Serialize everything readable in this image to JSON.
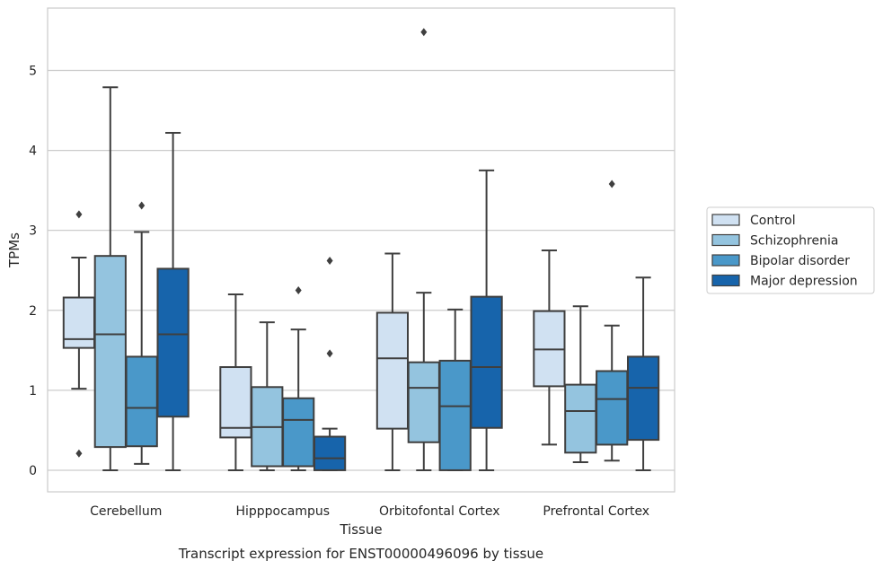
{
  "chart_data": {
    "type": "box",
    "xlabel": "Tissue",
    "ylabel": "TPMs",
    "caption": "Transcript expression for ENST00000496096 by tissue",
    "ylim": [
      -0.27,
      5.78
    ],
    "yticks": [
      0,
      1,
      2,
      3,
      4,
      5
    ],
    "grid": "horizontal",
    "legend_position": "right",
    "categories": [
      "Cerebellum",
      "Hipppocampus",
      "Orbitofontal Cortex",
      "Prefrontal Cortex"
    ],
    "series": [
      {
        "name": "Control",
        "color": "#d0e1f2",
        "boxes": [
          {
            "whisker_low": 1.02,
            "q1": 1.53,
            "median": 1.64,
            "q3": 2.16,
            "whisker_high": 2.66,
            "outliers": [
              3.2,
              0.21
            ]
          },
          {
            "whisker_low": 0.0,
            "q1": 0.41,
            "median": 0.53,
            "q3": 1.29,
            "whisker_high": 2.2,
            "outliers": []
          },
          {
            "whisker_low": 0.0,
            "q1": 0.52,
            "median": 1.4,
            "q3": 1.97,
            "whisker_high": 2.71,
            "outliers": []
          },
          {
            "whisker_low": 0.32,
            "q1": 1.05,
            "median": 1.51,
            "q3": 1.99,
            "whisker_high": 2.75,
            "outliers": []
          }
        ]
      },
      {
        "name": "Schizophrenia",
        "color": "#94c4df",
        "boxes": [
          {
            "whisker_low": 0.0,
            "q1": 0.29,
            "median": 1.7,
            "q3": 2.68,
            "whisker_high": 4.79,
            "outliers": []
          },
          {
            "whisker_low": 0.0,
            "q1": 0.05,
            "median": 0.54,
            "q3": 1.04,
            "whisker_high": 1.85,
            "outliers": []
          },
          {
            "whisker_low": 0.0,
            "q1": 0.35,
            "median": 1.03,
            "q3": 1.35,
            "whisker_high": 2.22,
            "outliers": [
              5.48
            ]
          },
          {
            "whisker_low": 0.1,
            "q1": 0.22,
            "median": 0.74,
            "q3": 1.07,
            "whisker_high": 2.05,
            "outliers": []
          }
        ]
      },
      {
        "name": "Bipolar disorder",
        "color": "#4a98c9",
        "boxes": [
          {
            "whisker_low": 0.08,
            "q1": 0.3,
            "median": 0.78,
            "q3": 1.42,
            "whisker_high": 2.98,
            "outliers": [
              3.31
            ]
          },
          {
            "whisker_low": 0.0,
            "q1": 0.05,
            "median": 0.63,
            "q3": 0.9,
            "whisker_high": 1.76,
            "outliers": [
              2.25
            ]
          },
          {
            "whisker_low": 0.0,
            "q1": 0.0,
            "median": 0.8,
            "q3": 1.37,
            "whisker_high": 2.01,
            "outliers": []
          },
          {
            "whisker_low": 0.12,
            "q1": 0.32,
            "median": 0.89,
            "q3": 1.24,
            "whisker_high": 1.81,
            "outliers": [
              3.58
            ]
          }
        ]
      },
      {
        "name": "Major depression",
        "color": "#1764ab",
        "boxes": [
          {
            "whisker_low": 0.0,
            "q1": 0.67,
            "median": 1.7,
            "q3": 2.52,
            "whisker_high": 4.22,
            "outliers": []
          },
          {
            "whisker_low": 0.0,
            "q1": 0.0,
            "median": 0.15,
            "q3": 0.42,
            "whisker_high": 0.52,
            "outliers": [
              2.62,
              1.46
            ]
          },
          {
            "whisker_low": 0.0,
            "q1": 0.53,
            "median": 1.29,
            "q3": 2.17,
            "whisker_high": 3.75,
            "outliers": []
          },
          {
            "whisker_low": 0.0,
            "q1": 0.38,
            "median": 1.03,
            "q3": 1.42,
            "whisker_high": 2.41,
            "outliers": []
          }
        ]
      }
    ]
  }
}
